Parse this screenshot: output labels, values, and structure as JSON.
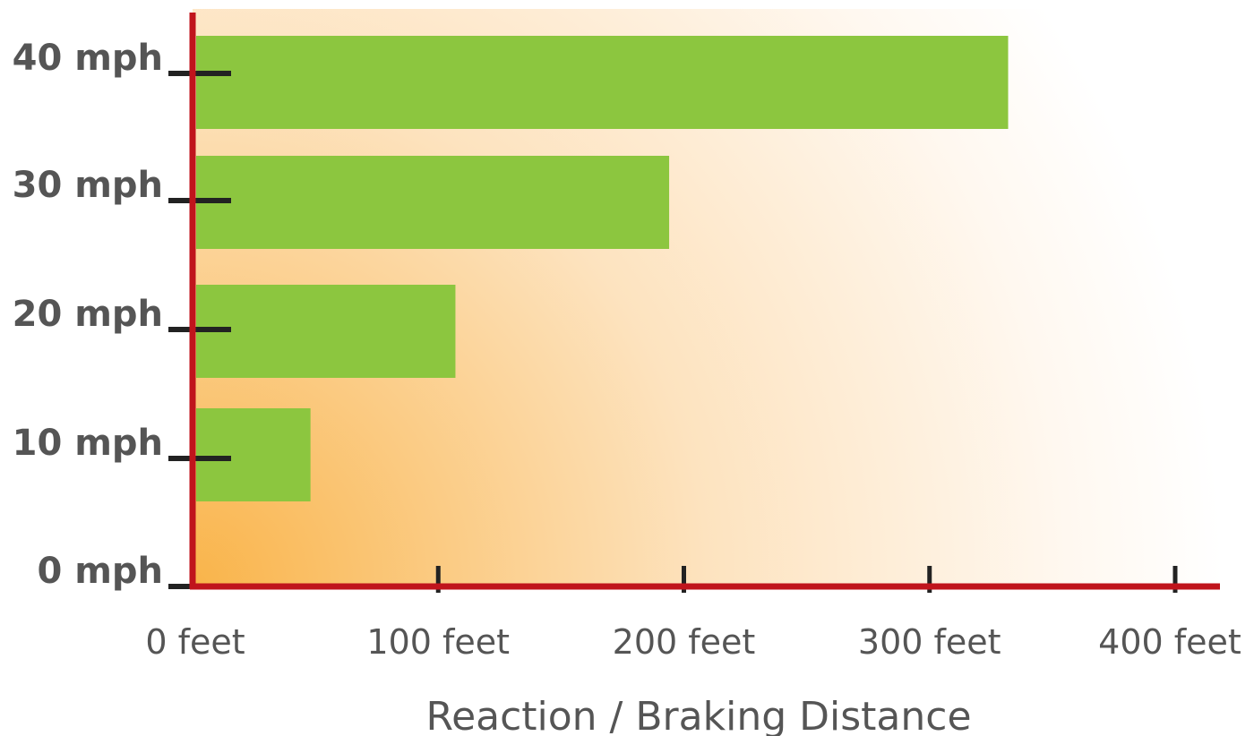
{
  "chart_data": {
    "type": "bar",
    "orientation": "horizontal",
    "categories": [
      "10 mph",
      "20 mph",
      "30 mph",
      "40 mph"
    ],
    "values": [
      48,
      107,
      194,
      332
    ],
    "y_tick_labels": [
      "0 mph",
      "10 mph",
      "20 mph",
      "30 mph",
      "40 mph"
    ],
    "x_ticks": [
      0,
      100,
      200,
      300,
      400
    ],
    "x_tick_labels": [
      "0 feet",
      "100 feet",
      "200 feet",
      "300 feet",
      "400 feet"
    ],
    "xlabel": "Reaction / Braking Distance",
    "xlim": [
      0,
      400
    ],
    "grid": false,
    "colors": {
      "bar": "#8cc63f",
      "axis": "#c0141c",
      "tick": "#222222",
      "bg_warm": "#f9b44a"
    }
  }
}
